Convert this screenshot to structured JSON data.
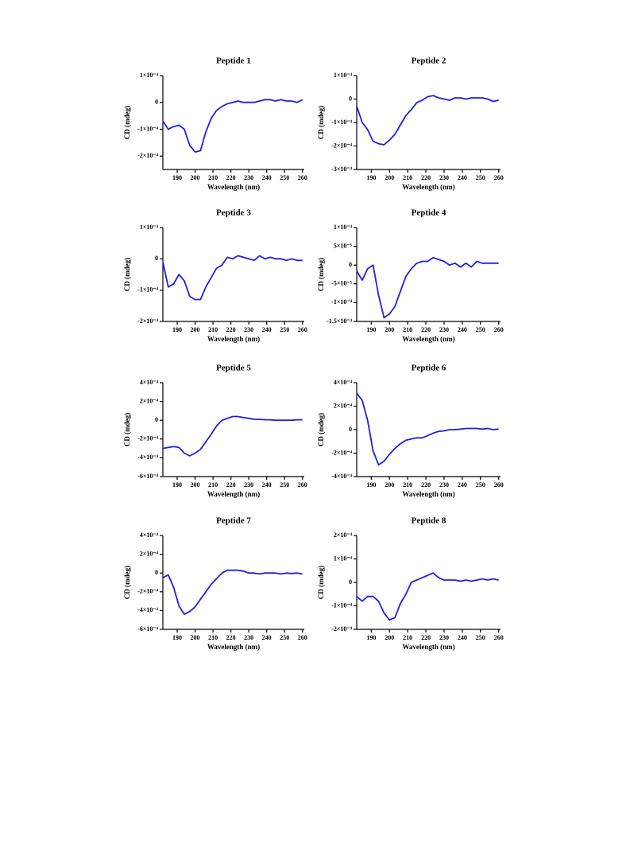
{
  "chart_data": [
    {
      "type": "line",
      "title": "Peptide 1",
      "xlabel": "Wavelength (nm)",
      "ylabel": "CD (mdeg)",
      "color": "#2020e0",
      "x": [
        182,
        185,
        188,
        191,
        194,
        197,
        200,
        203,
        206,
        209,
        212,
        215,
        218,
        221,
        224,
        227,
        230,
        233,
        236,
        239,
        242,
        245,
        248,
        251,
        254,
        257,
        260
      ],
      "values": [
        -7e-05,
        -0.0001,
        -9e-05,
        -8.5e-05,
        -0.0001,
        -0.00016,
        -0.000185,
        -0.00018,
        -0.00011,
        -6e-05,
        -3e-05,
        -1.5e-05,
        -5e-06,
        0,
        5e-06,
        0,
        0,
        0,
        5e-06,
        1e-05,
        1e-05,
        5e-06,
        1e-05,
        5e-06,
        5e-06,
        0,
        1e-05
      ],
      "xlim": [
        182,
        261
      ],
      "xticks": [
        190,
        200,
        210,
        220,
        230,
        240,
        250,
        260
      ],
      "ylim": [
        -0.00025,
        0.0001
      ],
      "yticks": [
        {
          "value": -0.0002,
          "label": "-2×10⁻⁴"
        },
        {
          "value": -0.0001,
          "label": "-1×10⁻⁴"
        },
        0,
        {
          "value": 0.0001,
          "label": "1×10⁻⁴"
        }
      ]
    },
    {
      "type": "line",
      "title": "Peptide 2",
      "xlabel": "Wavelength (nm)",
      "ylabel": "CD (mdeg)",
      "color": "#2020e0",
      "x": [
        182,
        185,
        188,
        191,
        194,
        197,
        200,
        203,
        206,
        209,
        212,
        215,
        218,
        221,
        224,
        227,
        230,
        233,
        236,
        239,
        242,
        245,
        248,
        251,
        254,
        257,
        260
      ],
      "values": [
        -3e-05,
        -0.0001,
        -0.00013,
        -0.00018,
        -0.00019,
        -0.000195,
        -0.000175,
        -0.00015,
        -0.00011,
        -7e-05,
        -4.5e-05,
        -1.5e-05,
        -5e-06,
        1e-05,
        1.5e-05,
        5e-06,
        0,
        -5e-06,
        5e-06,
        5e-06,
        0,
        5e-06,
        5e-06,
        5e-06,
        0,
        -1e-05,
        -5e-06
      ],
      "xlim": [
        182,
        261
      ],
      "xticks": [
        190,
        200,
        210,
        220,
        230,
        240,
        250,
        260
      ],
      "ylim": [
        -0.0003,
        0.0001
      ],
      "yticks": [
        {
          "value": -0.0003,
          "label": "-3×10⁻⁴"
        },
        {
          "value": -0.0002,
          "label": "-2×10⁻⁴"
        },
        {
          "value": -0.0001,
          "label": "-1×10⁻⁴"
        },
        0,
        {
          "value": 0.0001,
          "label": "1×10⁻⁴"
        }
      ]
    },
    {
      "type": "line",
      "title": "Peptide 3",
      "xlabel": "Wavelength (nm)",
      "ylabel": "CD (mdeg)",
      "color": "#2020e0",
      "x": [
        182,
        185,
        188,
        191,
        194,
        197,
        200,
        203,
        206,
        209,
        212,
        215,
        218,
        221,
        224,
        227,
        230,
        233,
        236,
        239,
        242,
        245,
        248,
        251,
        254,
        257,
        260
      ],
      "values": [
        -1e-05,
        -9e-05,
        -8e-05,
        -5e-05,
        -7e-05,
        -0.00012,
        -0.00013,
        -0.00013,
        -9e-05,
        -6e-05,
        -3e-05,
        -2e-05,
        5e-06,
        0,
        1e-05,
        5e-06,
        0,
        -5e-06,
        1e-05,
        0,
        5e-06,
        0,
        0,
        -5e-06,
        0,
        -5e-06,
        -5e-06
      ],
      "xlim": [
        182,
        261
      ],
      "xticks": [
        190,
        200,
        210,
        220,
        230,
        240,
        250,
        260
      ],
      "ylim": [
        -0.0002,
        0.0001
      ],
      "yticks": [
        {
          "value": -0.0002,
          "label": "-2×10⁻⁴"
        },
        {
          "value": -0.0001,
          "label": "-1×10⁻⁴"
        },
        0,
        {
          "value": 0.0001,
          "label": "1×10⁻⁴"
        }
      ]
    },
    {
      "type": "line",
      "title": "Peptide 4",
      "xlabel": "Wavelength (nm)",
      "ylabel": "CD (mdeg)",
      "color": "#2020e0",
      "x": [
        182,
        185,
        188,
        191,
        194,
        197,
        200,
        203,
        206,
        209,
        212,
        215,
        218,
        221,
        224,
        227,
        230,
        233,
        236,
        239,
        242,
        245,
        248,
        251,
        254,
        257,
        260
      ],
      "values": [
        -1.5e-05,
        -4e-05,
        -1e-05,
        0,
        -8e-05,
        -0.00014,
        -0.00013,
        -0.00011,
        -7e-05,
        -3e-05,
        -1e-05,
        5e-06,
        1e-05,
        1e-05,
        2e-05,
        1.5e-05,
        1e-05,
        0,
        5e-06,
        -5e-06,
        5e-06,
        -5e-06,
        1e-05,
        5e-06,
        5e-06,
        5e-06,
        5e-06
      ],
      "xlim": [
        182,
        261
      ],
      "xticks": [
        190,
        200,
        210,
        220,
        230,
        240,
        250,
        260
      ],
      "ylim": [
        -0.00015,
        0.0001
      ],
      "yticks": [
        {
          "value": -0.00015,
          "label": "-1.5×10⁻⁴"
        },
        {
          "value": -0.0001,
          "label": "-1×10⁻⁴"
        },
        {
          "value": -5e-05,
          "label": "-5×10⁻⁵"
        },
        0,
        {
          "value": 5e-05,
          "label": "5×10⁻⁵"
        },
        {
          "value": 0.0001,
          "label": "1×10⁻⁴"
        }
      ]
    },
    {
      "type": "line",
      "title": "Peptide 5",
      "xlabel": "Wavelength (nm)",
      "ylabel": "CD (mdeg)",
      "color": "#2020e0",
      "x": [
        182,
        185,
        188,
        191,
        194,
        197,
        200,
        203,
        206,
        209,
        212,
        215,
        218,
        221,
        224,
        227,
        230,
        233,
        236,
        239,
        242,
        245,
        248,
        251,
        254,
        257,
        260
      ],
      "values": [
        -0.0003,
        -0.00029,
        -0.00028,
        -0.00029,
        -0.00035,
        -0.00038,
        -0.00035,
        -0.00031,
        -0.00023,
        -0.00015,
        -6e-05,
        0,
        2e-05,
        4e-05,
        4e-05,
        3e-05,
        2e-05,
        1e-05,
        1e-05,
        5e-06,
        5e-06,
        0,
        0,
        0,
        0,
        5e-06,
        5e-06
      ],
      "xlim": [
        182,
        261
      ],
      "xticks": [
        190,
        200,
        210,
        220,
        230,
        240,
        250,
        260
      ],
      "ylim": [
        -0.0006,
        0.0004
      ],
      "yticks": [
        {
          "value": -0.0006,
          "label": "-6×10⁻⁴"
        },
        {
          "value": -0.0004,
          "label": "-4×10⁻⁴"
        },
        {
          "value": -0.0002,
          "label": "-2×10⁻⁴"
        },
        0,
        {
          "value": 0.0002,
          "label": "2×10⁻⁴"
        },
        {
          "value": 0.0004,
          "label": "4×10⁻⁴"
        }
      ]
    },
    {
      "type": "line",
      "title": "Peptide 6",
      "xlabel": "Wavelength (nm)",
      "ylabel": "CD (mdeg)",
      "color": "#2020e0",
      "x": [
        182,
        185,
        188,
        191,
        194,
        197,
        200,
        203,
        206,
        209,
        212,
        215,
        218,
        221,
        224,
        227,
        230,
        233,
        236,
        239,
        242,
        245,
        248,
        251,
        254,
        257,
        260
      ],
      "values": [
        0.00031,
        0.00025,
        8e-05,
        -0.00018,
        -0.0003,
        -0.00027,
        -0.00021,
        -0.00016,
        -0.00012,
        -9e-05,
        -8e-05,
        -7e-05,
        -7e-05,
        -5e-05,
        -3e-05,
        -1.5e-05,
        -1e-05,
        0,
        0,
        5e-06,
        1e-05,
        1e-05,
        1e-05,
        5e-06,
        1e-05,
        0,
        5e-06
      ],
      "xlim": [
        182,
        261
      ],
      "xticks": [
        190,
        200,
        210,
        220,
        230,
        240,
        250,
        260
      ],
      "ylim": [
        -0.0004,
        0.0004
      ],
      "yticks": [
        {
          "value": -0.0004,
          "label": "-4×10⁻⁴"
        },
        {
          "value": -0.0002,
          "label": "-2×10⁻⁴"
        },
        0,
        {
          "value": 0.0002,
          "label": "2×10⁻⁴"
        },
        {
          "value": 0.0004,
          "label": "4×10⁻⁴"
        }
      ]
    },
    {
      "type": "line",
      "title": "Peptide 7",
      "xlabel": "Wavelength (nm)",
      "ylabel": "CD (mdeg)",
      "color": "#2020e0",
      "x": [
        182,
        185,
        188,
        191,
        194,
        197,
        200,
        203,
        206,
        209,
        212,
        215,
        218,
        221,
        224,
        227,
        230,
        233,
        236,
        239,
        242,
        245,
        248,
        251,
        254,
        257,
        260
      ],
      "values": [
        -5e-05,
        -2e-05,
        -0.00015,
        -0.00035,
        -0.00044,
        -0.00041,
        -0.00036,
        -0.00028,
        -0.0002,
        -0.00012,
        -6e-05,
        0,
        3e-05,
        3e-05,
        3e-05,
        2e-05,
        0,
        0,
        -1e-05,
        0,
        0,
        0,
        -1e-05,
        0,
        -5e-06,
        0,
        -1e-05
      ],
      "xlim": [
        182,
        261
      ],
      "xticks": [
        190,
        200,
        210,
        220,
        230,
        240,
        250,
        260
      ],
      "ylim": [
        -0.0006,
        0.0004
      ],
      "yticks": [
        {
          "value": -0.0006,
          "label": "-6×10⁻⁴"
        },
        {
          "value": -0.0004,
          "label": "-4×10⁻⁴"
        },
        {
          "value": -0.0002,
          "label": "-2×10⁻⁴"
        },
        0,
        {
          "value": 0.0002,
          "label": "2×10⁻⁴"
        },
        {
          "value": 0.0004,
          "label": "4×10⁻⁴"
        }
      ]
    },
    {
      "type": "line",
      "title": "Peptide 8",
      "xlabel": "Wavelength (nm)",
      "ylabel": "CD (mdeg)",
      "color": "#2020e0",
      "x": [
        182,
        185,
        188,
        191,
        194,
        197,
        200,
        203,
        206,
        209,
        212,
        215,
        218,
        221,
        224,
        227,
        230,
        233,
        236,
        239,
        242,
        245,
        248,
        251,
        254,
        257,
        260
      ],
      "values": [
        -6e-05,
        -8e-05,
        -6e-05,
        -6e-05,
        -8e-05,
        -0.00013,
        -0.00016,
        -0.00015,
        -9e-05,
        -5e-05,
        0,
        1e-05,
        2e-05,
        3e-05,
        4e-05,
        2e-05,
        1e-05,
        1e-05,
        1e-05,
        5e-06,
        1e-05,
        5e-06,
        1e-05,
        1.5e-05,
        1e-05,
        1.5e-05,
        1e-05
      ],
      "xlim": [
        182,
        261
      ],
      "xticks": [
        190,
        200,
        210,
        220,
        230,
        240,
        250,
        260
      ],
      "ylim": [
        -0.0002,
        0.0002
      ],
      "yticks": [
        {
          "value": -0.0002,
          "label": "-2×10⁻⁴"
        },
        {
          "value": -0.0001,
          "label": "-1×10⁻⁴"
        },
        0,
        {
          "value": 0.0001,
          "label": "1×10⁻⁴"
        },
        {
          "value": 0.0002,
          "label": "2×10⁻⁴"
        }
      ]
    }
  ]
}
